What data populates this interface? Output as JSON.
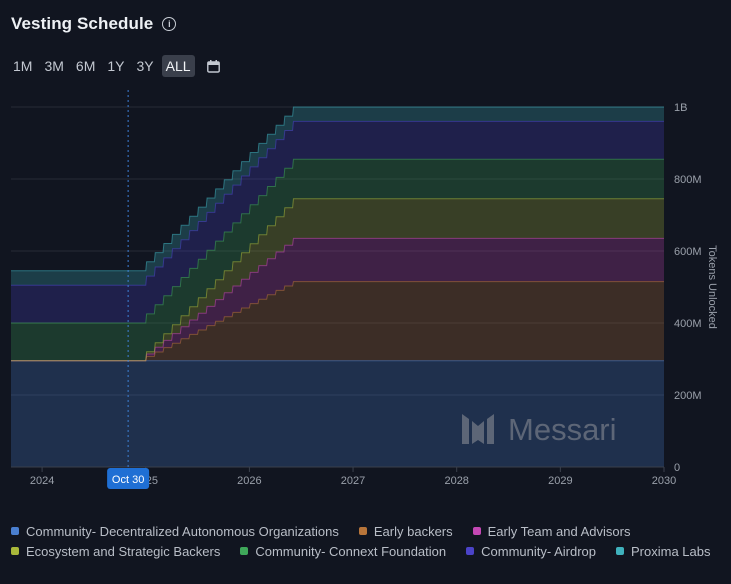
{
  "header": {
    "title": "Vesting Schedule",
    "info_icon": "info-icon"
  },
  "range": {
    "options": [
      "1M",
      "3M",
      "6M",
      "1Y",
      "3Y",
      "ALL"
    ],
    "active": "ALL",
    "calendar_icon": "calendar-icon"
  },
  "watermark": "Messari",
  "chart_data": {
    "type": "area",
    "title": "Vesting Schedule",
    "ylabel": "Tokens Unlocked",
    "xlabel": "",
    "x_ticks": [
      "2024",
      "2025",
      "2026",
      "2027",
      "2028",
      "2029",
      "2030"
    ],
    "y_ticks": [
      "0",
      "200M",
      "400M",
      "600M",
      "800M",
      "1B"
    ],
    "xlim": [
      2023.7,
      2030
    ],
    "ylim": [
      0,
      1000
    ],
    "units": "M tokens",
    "stacked": true,
    "cursor": {
      "x": 2024.83,
      "label": "Oct 30"
    },
    "series": [
      {
        "name": "Community- Decentralized Autonomous Organizations",
        "color": "#4a7fd0",
        "points": [
          [
            2023.7,
            295
          ],
          [
            2030,
            295
          ]
        ]
      },
      {
        "name": "Early backers",
        "color": "#b8753a",
        "points": [
          [
            2023.7,
            0
          ],
          [
            2024.92,
            0
          ],
          [
            2026.42,
            220
          ],
          [
            2030,
            220
          ]
        ]
      },
      {
        "name": "Early Team and Advisors",
        "color": "#c447b4",
        "points": [
          [
            2023.7,
            0
          ],
          [
            2024.92,
            0
          ],
          [
            2026.42,
            120
          ],
          [
            2030,
            120
          ]
        ]
      },
      {
        "name": "Ecosystem and Strategic Backers",
        "color": "#a9b83a",
        "points": [
          [
            2023.7,
            0
          ],
          [
            2024.92,
            0
          ],
          [
            2026.42,
            110
          ],
          [
            2030,
            110
          ]
        ]
      },
      {
        "name": "Community- Connext Foundation",
        "color": "#3fa85a",
        "points": [
          [
            2023.7,
            105
          ],
          [
            2024.92,
            105
          ],
          [
            2026.42,
            110
          ],
          [
            2030,
            110
          ]
        ]
      },
      {
        "name": "Community- Airdrop",
        "color": "#4b43c8",
        "points": [
          [
            2023.7,
            105
          ],
          [
            2030,
            105
          ]
        ]
      },
      {
        "name": "Proxima Labs",
        "color": "#3fb1bd",
        "points": [
          [
            2023.7,
            40
          ],
          [
            2030,
            40
          ]
        ]
      }
    ]
  }
}
